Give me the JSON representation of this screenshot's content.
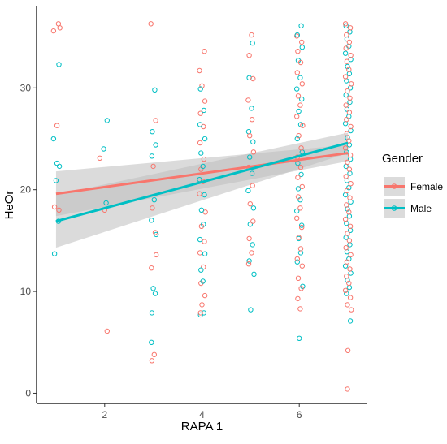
{
  "chart_data": {
    "type": "scatter",
    "xlabel": "RAPA 1",
    "ylabel": "HeOr",
    "xlim": [
      0.6,
      7.4
    ],
    "ylim": [
      -1.0,
      38.0
    ],
    "x_ticks": [
      2,
      4,
      6
    ],
    "y_ticks": [
      0,
      10,
      20,
      30
    ],
    "grid": false,
    "legend": {
      "title": "Gender",
      "placement": "right"
    },
    "colors": {
      "Female": "#F8766D",
      "Male": "#00BFC4",
      "ribbon": "#bdbdbd"
    },
    "series": [
      {
        "name": "Female",
        "color": "#F8766D",
        "fit": {
          "x": [
            1,
            7
          ],
          "y": [
            19.6,
            23.6
          ],
          "ci_low": [
            17.4,
            22.8
          ],
          "ci_high": [
            21.8,
            24.4
          ]
        },
        "points": [
          [
            0.95,
            35.6
          ],
          [
            1.05,
            36.3
          ],
          [
            1.08,
            35.9
          ],
          [
            1.02,
            26.3
          ],
          [
            0.97,
            18.3
          ],
          [
            1.06,
            18.0
          ],
          [
            1.9,
            23.1
          ],
          [
            2.05,
            6.1
          ],
          [
            2.0,
            18.0
          ],
          [
            2.95,
            36.3
          ],
          [
            3.05,
            26.8
          ],
          [
            3.0,
            22.3
          ],
          [
            2.98,
            18.2
          ],
          [
            3.04,
            15.8
          ],
          [
            2.96,
            12.3
          ],
          [
            3.02,
            3.8
          ],
          [
            2.97,
            3.2
          ],
          [
            3.06,
            13.6
          ],
          [
            4.05,
            33.6
          ],
          [
            3.95,
            31.7
          ],
          [
            4.0,
            30.2
          ],
          [
            4.06,
            28.7
          ],
          [
            3.97,
            27.5
          ],
          [
            4.03,
            26.2
          ],
          [
            3.96,
            24.6
          ],
          [
            4.04,
            23.0
          ],
          [
            3.98,
            22.0
          ],
          [
            4.02,
            20.8
          ],
          [
            3.95,
            19.6
          ],
          [
            4.07,
            17.8
          ],
          [
            3.99,
            16.4
          ],
          [
            4.05,
            14.9
          ],
          [
            3.96,
            13.8
          ],
          [
            4.03,
            12.4
          ],
          [
            3.98,
            10.8
          ],
          [
            4.06,
            9.6
          ],
          [
            4.0,
            8.7
          ],
          [
            3.97,
            7.9
          ],
          [
            5.02,
            35.2
          ],
          [
            4.97,
            33.2
          ],
          [
            5.05,
            30.9
          ],
          [
            4.95,
            28.8
          ],
          [
            5.03,
            26.9
          ],
          [
            4.98,
            25.3
          ],
          [
            5.06,
            23.7
          ],
          [
            4.96,
            22.2
          ],
          [
            5.04,
            20.4
          ],
          [
            4.99,
            18.6
          ],
          [
            5.05,
            16.9
          ],
          [
            4.97,
            15.2
          ],
          [
            5.02,
            13.8
          ],
          [
            4.96,
            12.7
          ],
          [
            5.95,
            35.1
          ],
          [
            6.05,
            34.5
          ],
          [
            5.97,
            33.6
          ],
          [
            6.03,
            32.5
          ],
          [
            5.96,
            31.5
          ],
          [
            6.06,
            30.4
          ],
          [
            5.98,
            29.2
          ],
          [
            6.02,
            28.3
          ],
          [
            5.95,
            27.2
          ],
          [
            6.07,
            26.3
          ],
          [
            5.99,
            25.3
          ],
          [
            6.04,
            24.1
          ],
          [
            5.96,
            23.2
          ],
          [
            6.03,
            22.2
          ],
          [
            5.97,
            21.2
          ],
          [
            6.06,
            20.3
          ],
          [
            5.98,
            19.3
          ],
          [
            6.02,
            18.2
          ],
          [
            5.95,
            17.2
          ],
          [
            6.05,
            16.3
          ],
          [
            5.99,
            15.3
          ],
          [
            6.03,
            14.2
          ],
          [
            5.96,
            13.2
          ],
          [
            6.06,
            12.5
          ],
          [
            5.98,
            11.3
          ],
          [
            6.04,
            10.3
          ],
          [
            5.97,
            9.3
          ],
          [
            6.02,
            8.3
          ],
          [
            6.95,
            36.3
          ],
          [
            7.05,
            35.9
          ],
          [
            6.97,
            35.2
          ],
          [
            7.03,
            34.5
          ],
          [
            6.96,
            33.9
          ],
          [
            7.06,
            33.2
          ],
          [
            6.98,
            32.6
          ],
          [
            7.02,
            31.8
          ],
          [
            6.95,
            31.1
          ],
          [
            7.07,
            30.4
          ],
          [
            6.99,
            29.7
          ],
          [
            7.04,
            29.0
          ],
          [
            6.96,
            28.3
          ],
          [
            7.03,
            27.6
          ],
          [
            6.97,
            26.9
          ],
          [
            7.06,
            26.2
          ],
          [
            6.98,
            25.5
          ],
          [
            7.02,
            24.8
          ],
          [
            6.95,
            24.1
          ],
          [
            7.05,
            23.4
          ],
          [
            6.99,
            22.7
          ],
          [
            7.03,
            22.0
          ],
          [
            6.96,
            21.3
          ],
          [
            7.06,
            20.6
          ],
          [
            6.98,
            19.9
          ],
          [
            7.04,
            19.2
          ],
          [
            6.97,
            18.5
          ],
          [
            7.02,
            17.8
          ],
          [
            6.95,
            17.1
          ],
          [
            7.05,
            16.4
          ],
          [
            6.99,
            15.7
          ],
          [
            7.03,
            15.0
          ],
          [
            6.96,
            14.3
          ],
          [
            7.06,
            13.6
          ],
          [
            6.98,
            12.9
          ],
          [
            7.04,
            12.2
          ],
          [
            6.97,
            11.5
          ],
          [
            7.02,
            10.8
          ],
          [
            6.95,
            10.1
          ],
          [
            7.05,
            9.4
          ],
          [
            6.99,
            8.7
          ],
          [
            7.07,
            8.2
          ],
          [
            7.0,
            4.2
          ],
          [
            6.99,
            0.4
          ]
        ]
      },
      {
        "name": "Male",
        "color": "#00BFC4",
        "fit": {
          "x": [
            1,
            7
          ],
          "y": [
            16.9,
            24.6
          ],
          "ci_low": [
            14.3,
            23.6
          ],
          "ci_high": [
            19.5,
            25.6
          ]
        },
        "points": [
          [
            1.06,
            32.3
          ],
          [
            0.95,
            25.0
          ],
          [
            1.02,
            22.6
          ],
          [
            1.07,
            22.3
          ],
          [
            1.0,
            20.9
          ],
          [
            1.05,
            16.9
          ],
          [
            0.97,
            13.7
          ],
          [
            2.05,
            26.8
          ],
          [
            1.98,
            24.0
          ],
          [
            2.03,
            18.7
          ],
          [
            3.03,
            29.8
          ],
          [
            2.98,
            25.7
          ],
          [
            3.05,
            24.4
          ],
          [
            2.97,
            23.3
          ],
          [
            3.02,
            19.0
          ],
          [
            2.96,
            17.0
          ],
          [
            3.06,
            15.6
          ],
          [
            3.0,
            10.3
          ],
          [
            2.97,
            7.9
          ],
          [
            2.96,
            5.0
          ],
          [
            3.04,
            9.8
          ],
          [
            3.97,
            29.9
          ],
          [
            4.04,
            27.8
          ],
          [
            3.96,
            26.4
          ],
          [
            4.06,
            25.0
          ],
          [
            3.98,
            23.6
          ],
          [
            4.02,
            22.3
          ],
          [
            3.95,
            21.0
          ],
          [
            4.05,
            19.5
          ],
          [
            3.99,
            18.0
          ],
          [
            4.03,
            16.6
          ],
          [
            3.96,
            15.1
          ],
          [
            4.06,
            13.7
          ],
          [
            3.98,
            12.1
          ],
          [
            4.02,
            11.0
          ],
          [
            3.97,
            7.7
          ],
          [
            4.04,
            7.9
          ],
          [
            5.04,
            34.4
          ],
          [
            4.97,
            31.0
          ],
          [
            5.02,
            28.0
          ],
          [
            4.96,
            25.7
          ],
          [
            5.05,
            24.7
          ],
          [
            4.98,
            23.2
          ],
          [
            5.03,
            21.6
          ],
          [
            4.95,
            19.9
          ],
          [
            5.06,
            18.2
          ],
          [
            4.99,
            16.6
          ],
          [
            5.04,
            14.6
          ],
          [
            4.97,
            13.0
          ],
          [
            5.07,
            11.7
          ],
          [
            5.0,
            8.2
          ],
          [
            6.04,
            36.1
          ],
          [
            5.96,
            35.2
          ],
          [
            6.06,
            34.0
          ],
          [
            5.98,
            32.7
          ],
          [
            6.02,
            31.0
          ],
          [
            5.95,
            29.9
          ],
          [
            6.05,
            28.9
          ],
          [
            5.99,
            27.7
          ],
          [
            6.03,
            26.4
          ],
          [
            5.96,
            25.0
          ],
          [
            6.06,
            23.7
          ],
          [
            5.97,
            22.6
          ],
          [
            6.04,
            21.5
          ],
          [
            5.98,
            20.1
          ],
          [
            6.02,
            19.0
          ],
          [
            5.95,
            17.9
          ],
          [
            6.05,
            16.5
          ],
          [
            5.99,
            15.2
          ],
          [
            6.03,
            13.8
          ],
          [
            5.96,
            12.9
          ],
          [
            6.07,
            10.5
          ],
          [
            6.0,
            5.4
          ],
          [
            6.96,
            36.1
          ],
          [
            7.04,
            35.5
          ],
          [
            6.98,
            34.8
          ],
          [
            7.02,
            34.1
          ],
          [
            6.95,
            33.4
          ],
          [
            7.06,
            32.8
          ],
          [
            6.99,
            32.1
          ],
          [
            7.03,
            31.4
          ],
          [
            6.97,
            30.7
          ],
          [
            7.05,
            30.0
          ],
          [
            6.96,
            29.3
          ],
          [
            7.04,
            28.6
          ],
          [
            6.98,
            27.9
          ],
          [
            7.02,
            27.2
          ],
          [
            6.95,
            26.5
          ],
          [
            7.06,
            25.8
          ],
          [
            6.99,
            25.1
          ],
          [
            7.03,
            24.4
          ],
          [
            6.97,
            23.7
          ],
          [
            7.05,
            23.0
          ],
          [
            6.96,
            22.3
          ],
          [
            7.04,
            21.6
          ],
          [
            6.98,
            20.9
          ],
          [
            7.02,
            20.2
          ],
          [
            6.95,
            19.5
          ],
          [
            7.06,
            18.8
          ],
          [
            6.99,
            18.1
          ],
          [
            7.03,
            17.4
          ],
          [
            6.97,
            16.7
          ],
          [
            7.05,
            16.0
          ],
          [
            6.96,
            15.3
          ],
          [
            7.04,
            14.6
          ],
          [
            6.98,
            13.9
          ],
          [
            7.02,
            13.2
          ],
          [
            6.95,
            12.5
          ],
          [
            7.06,
            11.8
          ],
          [
            6.99,
            11.1
          ],
          [
            7.03,
            10.4
          ],
          [
            6.97,
            9.8
          ],
          [
            7.05,
            7.1
          ]
        ]
      }
    ]
  }
}
